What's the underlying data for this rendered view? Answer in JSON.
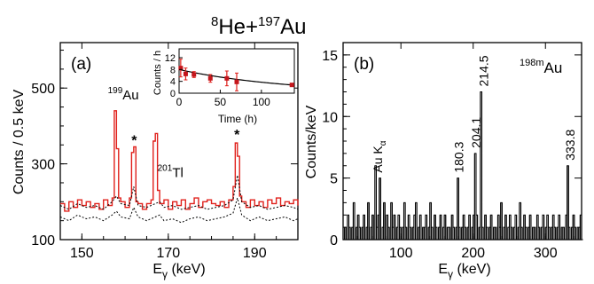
{
  "figure": {
    "title_main": "He+",
    "title_sup_a": "8",
    "title_sup_b": "197",
    "title_tail": "Au"
  },
  "chart_data": [
    {
      "id": "a",
      "type": "line",
      "panel_label": "(a)",
      "xlabel": "E",
      "xlabel_sub": "γ",
      "xlabel_unit": " (keV)",
      "ylabel": "Counts / 0.5 keV",
      "xlim": [
        145,
        200
      ],
      "ylim": [
        100,
        620
      ],
      "xticks": [
        150,
        170,
        190
      ],
      "yticks": [
        100,
        300,
        500
      ],
      "annotations": [
        {
          "sup": "199",
          "text": "Au",
          "x": 156,
          "y": 470
        },
        {
          "sup": "201",
          "text": "Tl",
          "x": 167.5,
          "y": 265
        },
        {
          "text": "*",
          "x": 162.1,
          "y": 350
        },
        {
          "text": "*",
          "x": 185.9,
          "y": 365
        }
      ],
      "series": [
        {
          "style": "red-step",
          "x": [
            145,
            146,
            147,
            148,
            149,
            150,
            151,
            152,
            153,
            154,
            155,
            156,
            157,
            157.5,
            158,
            158.5,
            159,
            160,
            161,
            161.5,
            162,
            162.5,
            163,
            164,
            165,
            166,
            166.5,
            167,
            167.5,
            168,
            169,
            170,
            171,
            172,
            173,
            174,
            175,
            176,
            177,
            178,
            179,
            180,
            181,
            182,
            183,
            184,
            185,
            185.5,
            186,
            186.5,
            187,
            188,
            189,
            190,
            191,
            192,
            193,
            194,
            195,
            196,
            197,
            198,
            199,
            200
          ],
          "y": [
            195,
            175,
            200,
            185,
            205,
            190,
            200,
            185,
            195,
            180,
            205,
            190,
            210,
            440,
            340,
            210,
            200,
            185,
            210,
            330,
            345,
            200,
            195,
            180,
            195,
            205,
            360,
            380,
            230,
            195,
            205,
            180,
            200,
            190,
            205,
            180,
            195,
            210,
            185,
            200,
            205,
            195,
            190,
            200,
            185,
            205,
            240,
            355,
            320,
            215,
            200,
            185,
            205,
            190,
            200,
            185,
            205,
            195,
            210,
            190,
            200,
            195,
            205,
            190
          ]
        },
        {
          "style": "black-dotted",
          "x": [
            145,
            147,
            149,
            151,
            153,
            155,
            157,
            158,
            159,
            161,
            162,
            163,
            165,
            167,
            168,
            169,
            171,
            173,
            175,
            177,
            179,
            181,
            183,
            185,
            186,
            187,
            189,
            191,
            193,
            195,
            197,
            199,
            200
          ],
          "y": [
            190,
            180,
            195,
            185,
            190,
            180,
            200,
            215,
            195,
            190,
            240,
            190,
            185,
            195,
            200,
            185,
            190,
            180,
            185,
            190,
            180,
            185,
            190,
            205,
            270,
            200,
            185,
            190,
            180,
            185,
            190,
            185,
            180
          ]
        },
        {
          "style": "black-dotted",
          "x": [
            145,
            147,
            149,
            151,
            153,
            155,
            157,
            158,
            159,
            161,
            162,
            163,
            165,
            167,
            168,
            169,
            171,
            173,
            175,
            177,
            179,
            181,
            183,
            185,
            186,
            187,
            189,
            191,
            193,
            195,
            197,
            199,
            200
          ],
          "y": [
            160,
            150,
            165,
            155,
            160,
            150,
            165,
            175,
            160,
            155,
            185,
            160,
            150,
            160,
            165,
            150,
            155,
            145,
            155,
            160,
            150,
            155,
            160,
            170,
            210,
            165,
            150,
            160,
            150,
            155,
            160,
            150,
            155
          ]
        }
      ]
    },
    {
      "id": "inset",
      "type": "scatter",
      "xlabel": "Time (h)",
      "ylabel": "Counts / h",
      "xlim": [
        0,
        140
      ],
      "ylim": [
        0,
        15
      ],
      "xticks": [
        0,
        50,
        100
      ],
      "yticks": [
        0,
        4,
        8,
        12
      ],
      "points": [
        {
          "x": 2,
          "y": 8.5,
          "err": 3.0
        },
        {
          "x": 8,
          "y": 6.5,
          "err": 2.0
        },
        {
          "x": 18,
          "y": 6.3,
          "err": 1.0
        },
        {
          "x": 38,
          "y": 5.0,
          "err": 1.3
        },
        {
          "x": 58,
          "y": 5.0,
          "err": 2.5
        },
        {
          "x": 70,
          "y": 3.8,
          "err": 3.0
        },
        {
          "x": 137,
          "y": 2.8,
          "err": 0.4
        }
      ],
      "fit": {
        "type": "exponential",
        "a": 8.0,
        "tau": 130
      }
    },
    {
      "id": "b",
      "type": "bar",
      "panel_label": "(b)",
      "xlabel": "E",
      "xlabel_sub": "γ",
      "xlabel_unit": " (keV)",
      "ylabel": "Counts/keV",
      "xlim": [
        20,
        350
      ],
      "ylim": [
        0,
        16
      ],
      "xticks": [
        100,
        200,
        300
      ],
      "yticks": [
        0,
        5,
        10,
        15
      ],
      "isotope_label": {
        "sup": "198m",
        "text": "Au"
      },
      "peaks": [
        {
          "label": "Au K",
          "label_sub": "α",
          "x": 68,
          "y": 5
        },
        {
          "label": "180.3",
          "x": 180.3,
          "y": 5
        },
        {
          "label": "204.1",
          "x": 204.1,
          "y": 7
        },
        {
          "label": "214.5",
          "x": 214.5,
          "y": 12
        },
        {
          "label": "333.8",
          "x": 333.8,
          "y": 6
        }
      ],
      "spectrum": {
        "x_start": 20,
        "bin": 2,
        "counts": [
          0,
          1,
          0,
          2,
          1,
          0,
          1,
          3,
          0,
          1,
          2,
          1,
          0,
          1,
          2,
          0,
          1,
          3,
          0,
          1,
          2,
          0,
          6,
          1,
          2,
          5,
          0,
          1,
          3,
          0,
          2,
          1,
          0,
          3,
          1,
          2,
          0,
          1,
          2,
          1,
          0,
          1,
          3,
          1,
          0,
          2,
          1,
          0,
          1,
          2,
          3,
          0,
          1,
          2,
          0,
          1,
          1,
          2,
          0,
          1,
          3,
          1,
          0,
          2,
          1,
          0,
          1,
          2,
          0,
          1,
          2,
          0,
          1,
          1,
          0,
          2,
          1,
          0,
          1,
          5,
          1,
          0,
          1,
          2,
          1,
          0,
          1,
          2,
          0,
          1,
          2,
          7,
          2,
          0,
          1,
          12,
          1,
          0,
          2,
          1,
          0,
          1,
          2,
          0,
          1,
          1,
          0,
          2,
          1,
          3,
          0,
          1,
          2,
          0,
          1,
          2,
          1,
          0,
          1,
          2,
          0,
          1,
          3,
          1,
          0,
          2,
          1,
          0,
          1,
          2,
          0,
          1,
          1,
          0,
          2,
          1,
          0,
          1,
          2,
          0,
          1,
          2,
          1,
          0,
          1,
          2,
          1,
          0,
          1,
          2,
          0,
          1,
          1,
          0,
          2,
          6,
          1,
          0,
          1,
          2,
          1,
          0,
          1,
          1,
          2,
          0
        ]
      }
    }
  ]
}
